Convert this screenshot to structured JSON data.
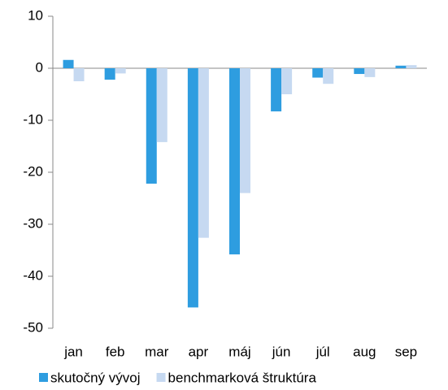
{
  "chart_data": {
    "type": "bar",
    "categories": [
      "jan",
      "feb",
      "mar",
      "apr",
      "máj",
      "jún",
      "júl",
      "aug",
      "sep"
    ],
    "series": [
      {
        "name": "skutočný vývoj",
        "color": "#2e9de0",
        "values": [
          1.6,
          -2.2,
          -22.2,
          -46,
          -35.8,
          -8.3,
          -1.8,
          -1.1,
          0.5
        ]
      },
      {
        "name": "benchmarková štruktúra",
        "color": "#c6d9f1",
        "values": [
          -2.5,
          -1.0,
          -14.2,
          -32.6,
          -24,
          -5,
          -3,
          -1.7,
          0.6
        ]
      }
    ],
    "ylim": [
      -50,
      10
    ],
    "yticks": [
      -50,
      -40,
      -30,
      -20,
      -10,
      0,
      10
    ],
    "grid": false,
    "legend": "bottom"
  }
}
